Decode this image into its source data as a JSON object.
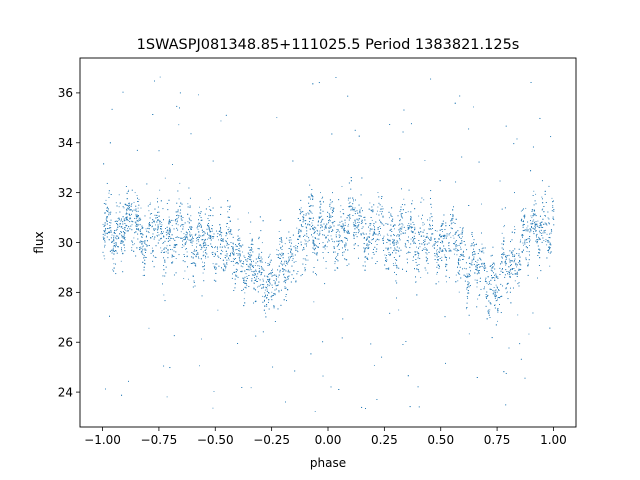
{
  "chart_data": {
    "type": "scatter",
    "title": "1SWASPJ081348.85+111025.5 Period 1383821.125s",
    "xlabel": "phase",
    "ylabel": "flux",
    "xlim": [
      -1.1,
      1.1
    ],
    "ylim": [
      22.6,
      37.4
    ],
    "x_ticks": [
      -1.0,
      -0.75,
      -0.5,
      -0.25,
      0.0,
      0.25,
      0.5,
      0.75,
      1.0
    ],
    "x_tick_labels": [
      "−1.00",
      "−0.75",
      "−0.50",
      "−0.25",
      "0.00",
      "0.25",
      "0.50",
      "0.75",
      "1.00"
    ],
    "y_ticks": [
      24,
      26,
      28,
      30,
      32,
      34,
      36
    ],
    "y_tick_labels": [
      "24",
      "26",
      "28",
      "30",
      "32",
      "34",
      "36"
    ],
    "grid": false,
    "legend": "none",
    "marker_color": "#1f77b4",
    "profile": {
      "phase": [
        0.0,
        0.05,
        0.1,
        0.15,
        0.2,
        0.25,
        0.3,
        0.35,
        0.4,
        0.45,
        0.5,
        0.55,
        0.6,
        0.65,
        0.7,
        0.75,
        0.8,
        0.85,
        0.9,
        0.95,
        1.0
      ],
      "flux": [
        30.1,
        30.5,
        30.8,
        30.7,
        30.4,
        30.2,
        30.3,
        30.5,
        30.2,
        29.9,
        30.1,
        29.8,
        29.4,
        29.0,
        28.6,
        28.3,
        28.9,
        29.8,
        30.4,
        30.9,
        30.3
      ]
    },
    "point_count": 7000,
    "point_spread": 0.55,
    "outlier_fraction": 0.04,
    "outlier_range": [
      23.2,
      36.8
    ]
  }
}
